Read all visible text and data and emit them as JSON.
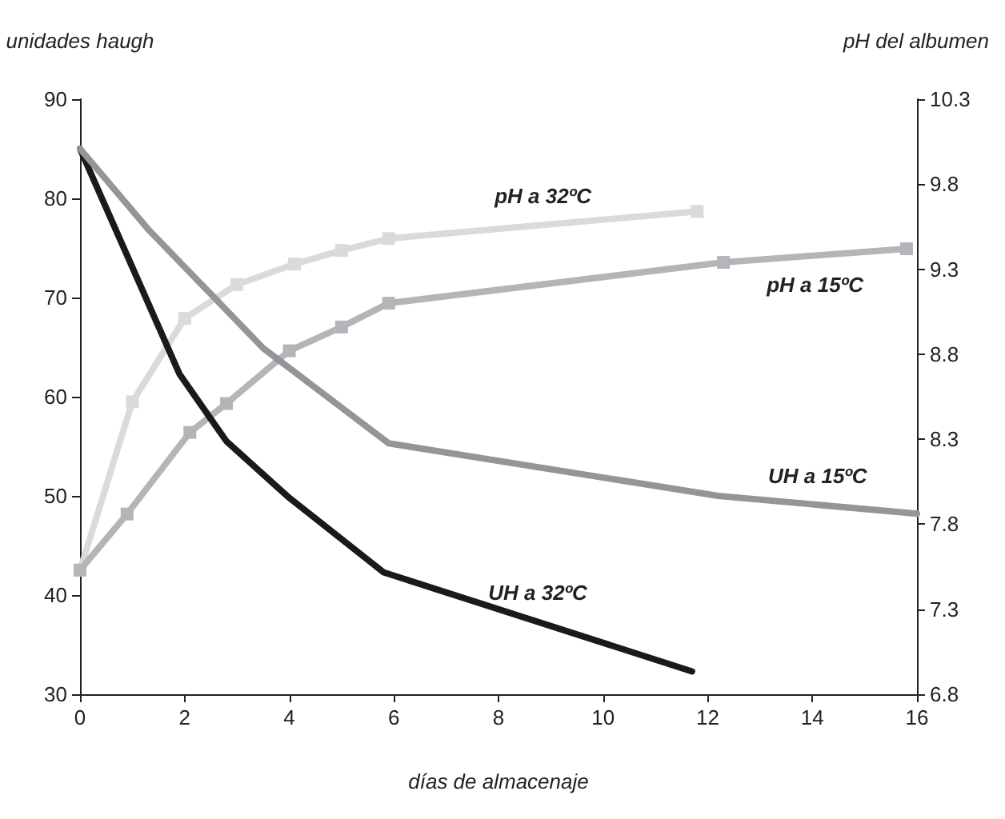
{
  "chart_data": {
    "type": "line",
    "xlabel": "días de almacenaje",
    "ylabel": "unidades haugh",
    "y2label": "pH del albumen",
    "xlim": [
      0,
      16
    ],
    "xticks": [
      0,
      2,
      4,
      6,
      8,
      10,
      12,
      14,
      16
    ],
    "ylim": [
      30,
      90
    ],
    "yticks": [
      30,
      40,
      50,
      60,
      70,
      80,
      90
    ],
    "y2lim": [
      6.8,
      10.3
    ],
    "y2ticks": [
      {
        "value": 6.8,
        "label": "6.8"
      },
      {
        "value": 7.3,
        "label": "7.3"
      },
      {
        "value": 7.8,
        "label": "7.8"
      },
      {
        "value": 8.3,
        "label": "8.3"
      },
      {
        "value": 8.8,
        "label": "8.8"
      },
      {
        "value": 9.3,
        "label": "9.3"
      },
      {
        "value": 9.8,
        "label": "9.8"
      },
      {
        "value": 10.3,
        "label": "10.3"
      }
    ],
    "grid": false,
    "legend": false,
    "line_style": "solid",
    "series": [
      {
        "name": "UH a 32ºC",
        "color": "#1a1a1a",
        "marker": "none",
        "x": [
          0,
          1.9,
          2.8,
          4.0,
          5.8,
          11.7
        ],
        "values": [
          85,
          62.3,
          55.5,
          49.8,
          42.3,
          32.3
        ]
      },
      {
        "name": "UH a 15ºC",
        "color": "#939598",
        "marker": "none",
        "x": [
          0,
          1.3,
          3.5,
          5.9,
          12.2,
          16
        ],
        "values": [
          85,
          76.9,
          64.9,
          55.3,
          50,
          48.2
        ]
      },
      {
        "name": "pH a 32ºC",
        "color": "#d9dadb",
        "marker": "square",
        "axis": "y2",
        "x": [
          0,
          1.0,
          2.0,
          3.0,
          4.1,
          5.0,
          5.9,
          11.8
        ],
        "values": [
          7.53,
          8.52,
          9.01,
          9.21,
          9.33,
          9.41,
          9.48,
          9.64
        ]
      },
      {
        "name": "pH a 15ºC",
        "color": "#b4b5b8",
        "marker": "square",
        "axis": "y2",
        "x": [
          0,
          0.9,
          2.1,
          2.8,
          4.0,
          5.0,
          5.9,
          12.3,
          15.8
        ],
        "values": [
          7.53,
          7.86,
          8.34,
          8.51,
          8.82,
          8.96,
          9.1,
          9.34,
          9.42
        ]
      }
    ]
  }
}
